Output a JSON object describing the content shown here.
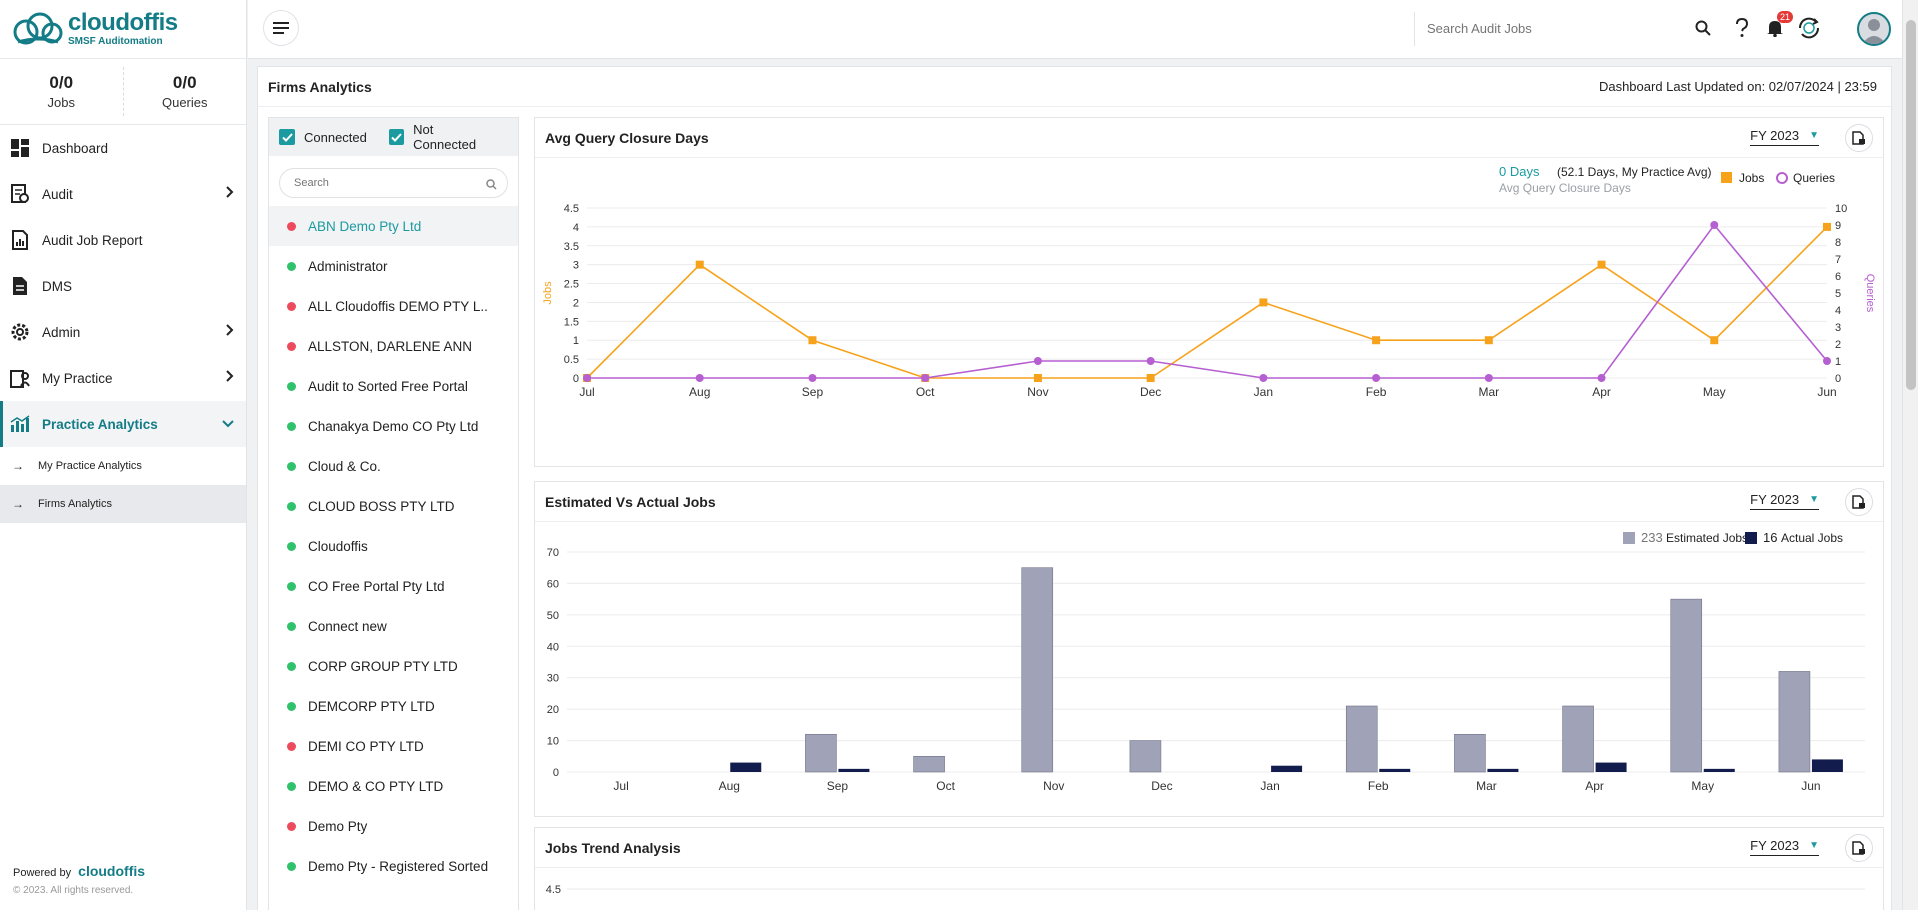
{
  "brand": {
    "name": "cloudoffis",
    "tagline": "SMSF Auditomation"
  },
  "counts": [
    {
      "value": "0/0",
      "label": "Jobs"
    },
    {
      "value": "0/0",
      "label": "Queries"
    }
  ],
  "nav": {
    "dashboard": "Dashboard",
    "audit": "Audit",
    "audit_job_report": "Audit Job Report",
    "dms": "DMS",
    "admin": "Admin",
    "my_practice": "My Practice",
    "practice_analytics": "Practice Analytics",
    "sub_my_practice_analytics": "My Practice Analytics",
    "sub_firms_analytics": "Firms Analytics"
  },
  "footer": {
    "powered_by": "Powered by",
    "brand": "cloudoffis",
    "copyright": "© 2023. All rights reserved."
  },
  "topbar": {
    "search_placeholder": "Search Audit Jobs",
    "notification_count": "21"
  },
  "page": {
    "title": "Firms Analytics",
    "last_updated": "Dashboard Last Updated on: 02/07/2024 | 23:59"
  },
  "firm_filters": {
    "connected": "Connected",
    "not_connected": "Not Connected",
    "search_placeholder": "Search"
  },
  "firms": [
    {
      "name": "ABN Demo Pty Ltd",
      "status": "red",
      "selected": true
    },
    {
      "name": "Administrator",
      "status": "green"
    },
    {
      "name": "ALL Cloudoffis DEMO PTY L..",
      "status": "red"
    },
    {
      "name": "ALLSTON, DARLENE ANN",
      "status": "red"
    },
    {
      "name": "Audit to Sorted Free Portal",
      "status": "green"
    },
    {
      "name": "Chanakya Demo CO Pty Ltd",
      "status": "green"
    },
    {
      "name": "Cloud & Co.",
      "status": "green"
    },
    {
      "name": "CLOUD BOSS PTY LTD",
      "status": "green"
    },
    {
      "name": "Cloudoffis",
      "status": "green"
    },
    {
      "name": "CO Free Portal Pty Ltd",
      "status": "green"
    },
    {
      "name": "Connect new",
      "status": "green"
    },
    {
      "name": "CORP GROUP PTY LTD",
      "status": "green"
    },
    {
      "name": "DEMCORP PTY LTD",
      "status": "green"
    },
    {
      "name": "DEMI CO PTY LTD",
      "status": "red"
    },
    {
      "name": "DEMO & CO PTY LTD",
      "status": "green"
    },
    {
      "name": "Demo Pty",
      "status": "red"
    },
    {
      "name": "Demo Pty - Registered Sorted",
      "status": "green"
    }
  ],
  "colors": {
    "accent": "#1b9aa0",
    "jobs": "#f7a21b",
    "queries": "#b55fd1",
    "estimated": "#a0a3b7",
    "actual": "#121c4d",
    "dot_red": "#ee4a5e",
    "dot_green": "#2ec26b"
  },
  "cards": {
    "avg_query": {
      "title": "Avg Query Closure Days",
      "fy": "FY 2023",
      "summary_value": "0 Days",
      "summary_note": "(52.1 Days, My Practice Avg)",
      "summary_sub": "Avg Query Closure Days"
    },
    "est_actual": {
      "title": "Estimated Vs Actual Jobs",
      "fy": "FY 2023",
      "est_total": "233",
      "est_label": "Estimated Jobs",
      "act_total": "16",
      "act_label": "Actual Jobs"
    },
    "jobs_trend": {
      "title": "Jobs Trend Analysis",
      "fy": "FY 2023",
      "first_tick": "4.5"
    }
  },
  "chart_data": [
    {
      "type": "line",
      "title": "Avg Query Closure Days",
      "categories": [
        "Jul",
        "Aug",
        "Sep",
        "Oct",
        "Nov",
        "Dec",
        "Jan",
        "Feb",
        "Mar",
        "Apr",
        "May",
        "Jun"
      ],
      "series": [
        {
          "name": "Jobs",
          "axis": "left",
          "values": [
            0,
            3,
            1,
            0,
            0,
            0,
            2,
            1,
            1,
            3,
            1,
            4
          ]
        },
        {
          "name": "Queries",
          "axis": "right",
          "values": [
            0,
            0,
            0,
            0,
            1,
            1,
            0,
            0,
            0,
            0,
            9,
            1
          ]
        }
      ],
      "ylabel": "Jobs",
      "y2label": "Queries",
      "ylim": [
        0,
        4.5
      ],
      "yticks": [
        "0",
        "0.5",
        "1",
        "1.5",
        "2",
        "2.5",
        "3",
        "3.5",
        "4",
        "4.5"
      ],
      "y2lim": [
        0,
        10
      ],
      "y2ticks": [
        "0",
        "1",
        "2",
        "3",
        "4",
        "5",
        "6",
        "7",
        "8",
        "9",
        "10"
      ],
      "legend": "top-right",
      "grid": true
    },
    {
      "type": "bar",
      "title": "Estimated Vs Actual Jobs",
      "categories": [
        "Jul",
        "Aug",
        "Sep",
        "Oct",
        "Nov",
        "Dec",
        "Jan",
        "Feb",
        "Mar",
        "Apr",
        "May",
        "Jun"
      ],
      "series": [
        {
          "name": "Estimated Jobs",
          "values": [
            0,
            0,
            12,
            5,
            65,
            10,
            0,
            21,
            12,
            21,
            55,
            32
          ]
        },
        {
          "name": "Actual Jobs",
          "values": [
            0,
            3,
            1,
            0,
            0,
            0,
            2,
            1,
            1,
            3,
            1,
            4
          ]
        }
      ],
      "ylim": [
        0,
        70
      ],
      "yticks": [
        "0",
        "10",
        "20",
        "30",
        "40",
        "50",
        "60",
        "70"
      ],
      "legend": "top-right",
      "grid": true
    }
  ]
}
